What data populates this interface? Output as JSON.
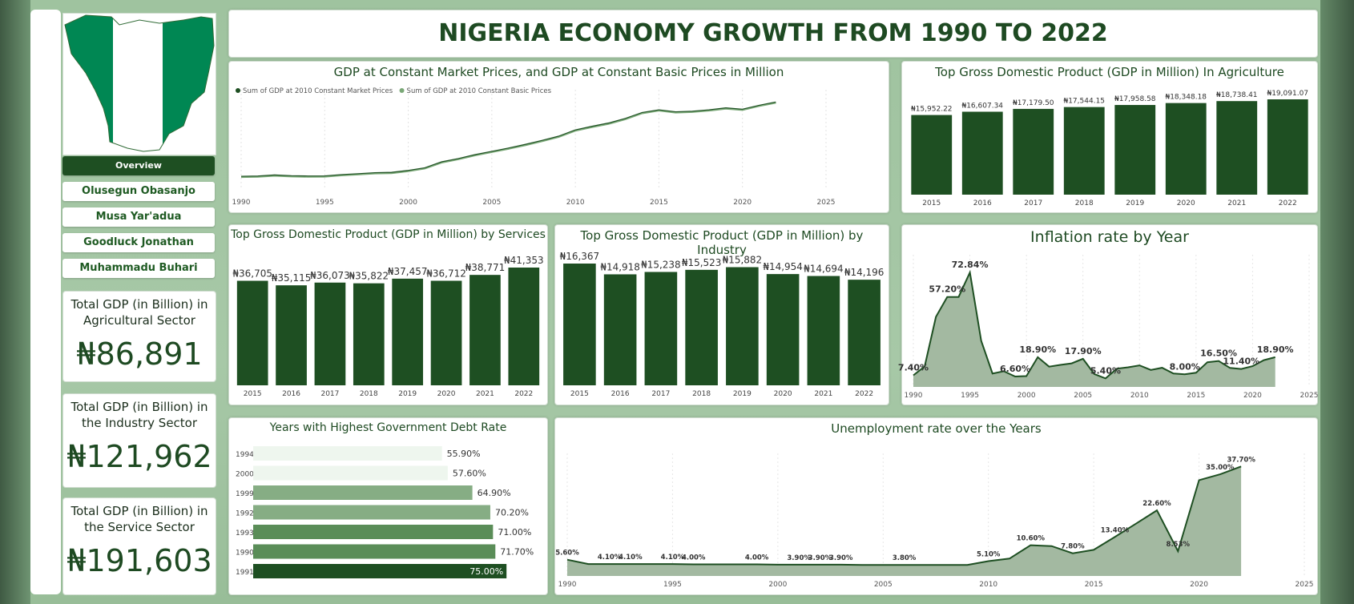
{
  "header": {
    "title": "NIGERIA ECONOMY GROWTH FROM 1990 TO 2022"
  },
  "colors": {
    "dark_green": "#1e4f22",
    "flag_green": "#008753",
    "area": "#a3b9a1",
    "light": "#7aa877"
  },
  "nav": {
    "overview": "Overview",
    "items": [
      "Olusegun Obasanjo",
      "Musa Yar'adua",
      "Goodluck Jonathan",
      "Muhammadu Buhari"
    ]
  },
  "kpis": [
    {
      "label": "Total GDP (in Billion) in Agricultural Sector",
      "value": "₦86,891"
    },
    {
      "label": "Total GDP (in Billion) in the Industry Sector",
      "value": "₦121,962"
    },
    {
      "label": "Total GDP (in Billion) in the Service Sector",
      "value": "₦191,603"
    }
  ],
  "chart_data": [
    {
      "type": "line",
      "title": "GDP at Constant Market Prices, and GDP at Constant Basic Prices in Million",
      "x": [
        1990,
        1991,
        1992,
        1993,
        1994,
        1995,
        1996,
        1997,
        1998,
        1999,
        2000,
        2001,
        2002,
        2003,
        2004,
        2005,
        2006,
        2007,
        2008,
        2009,
        2010,
        2011,
        2012,
        2013,
        2014,
        2015,
        2016,
        2017,
        2018,
        2019,
        2020,
        2021,
        2022
      ],
      "xticks": [
        1990,
        1995,
        2000,
        2005,
        2010,
        2015,
        2020,
        2025
      ],
      "xlim": [
        1990,
        2025
      ],
      "series": [
        {
          "name": "Sum of GDP at 2010 Constant Market Prices",
          "values": [
            20,
            20.5,
            22,
            21,
            20.5,
            20.6,
            22.5,
            24,
            25.5,
            26,
            29,
            33,
            42,
            47,
            53,
            58,
            63,
            68.5,
            74.5,
            81,
            90.5,
            96,
            101,
            108,
            117,
            121,
            118,
            119,
            121,
            124,
            122,
            128,
            133
          ]
        },
        {
          "name": "Sum of GDP at 2010 Constant Basic Prices",
          "values": [
            19,
            19.5,
            21,
            20,
            19.5,
            19.6,
            21.5,
            23,
            24.5,
            25,
            28,
            32,
            41,
            46,
            52,
            57,
            62,
            67.5,
            73.5,
            80,
            89.5,
            95,
            100,
            107,
            116,
            120,
            117,
            118,
            120,
            123,
            121,
            127,
            132
          ]
        }
      ]
    },
    {
      "type": "bar",
      "title": "Top Gross Domestic Product (GDP in Million) In Agriculture",
      "categories": [
        "2015",
        "2016",
        "2017",
        "2018",
        "2019",
        "2020",
        "2021",
        "2022"
      ],
      "values": [
        15952.22,
        16607.34,
        17179.5,
        17544.15,
        17958.58,
        18348.18,
        18738.41,
        19091.07
      ],
      "labels": [
        "₦15,952.22",
        "₦16,607.34",
        "₦17,179.50",
        "₦17,544.15",
        "₦17,958.58",
        "₦18,348.18",
        "₦18,738.41",
        "₦19,091.07"
      ]
    },
    {
      "type": "bar",
      "title": "Top Gross Domestic Product (GDP in Million) by Services",
      "categories": [
        "2015",
        "2016",
        "2017",
        "2018",
        "2019",
        "2020",
        "2021",
        "2022"
      ],
      "values": [
        36705,
        35115,
        36073,
        35822,
        37457,
        36712,
        38771,
        41353
      ],
      "labels": [
        "₦36,705",
        "₦35,115",
        "₦36,073",
        "₦35,822",
        "₦37,457",
        "₦36,712",
        "₦38,771",
        "₦41,353"
      ]
    },
    {
      "type": "bar",
      "title": "Top Gross Domestic Product (GDP in Million) by Industry",
      "categories": [
        "2015",
        "2016",
        "2017",
        "2018",
        "2019",
        "2020",
        "2021",
        "2022"
      ],
      "values": [
        16367,
        14918,
        15238,
        15523,
        15882,
        14954,
        14694,
        14196
      ],
      "labels": [
        "₦16,367",
        "₦14,918",
        "₦15,238",
        "₦15,523",
        "₦15,882",
        "₦14,954",
        "₦14,694",
        "₦14,196"
      ]
    },
    {
      "type": "area",
      "title": "Inflation rate by Year",
      "x": [
        1990,
        1991,
        1992,
        1993,
        1994,
        1995,
        1996,
        1997,
        1998,
        1999,
        2000,
        2001,
        2002,
        2003,
        2004,
        2005,
        2006,
        2007,
        2008,
        2009,
        2010,
        2011,
        2012,
        2013,
        2014,
        2015,
        2016,
        2017,
        2018,
        2019,
        2020,
        2021,
        2022
      ],
      "values": [
        7.4,
        13.0,
        44.6,
        57.2,
        57.2,
        72.84,
        29.3,
        8.5,
        10.0,
        6.6,
        6.9,
        18.9,
        12.9,
        14.0,
        15.0,
        17.9,
        8.2,
        5.4,
        11.6,
        12.5,
        13.7,
        10.8,
        12.2,
        8.5,
        8.0,
        9.0,
        15.7,
        16.5,
        12.1,
        11.4,
        13.2,
        17.0,
        18.9
      ],
      "labels": {
        "1990": "7.40%",
        "1993": "57.20%",
        "1995": "72.84%",
        "1999": "6.60%",
        "2001": "18.90%",
        "2005": "17.90%",
        "2007": "5.40%",
        "2014": "8.00%",
        "2017": "16.50%",
        "2019": "11.40%",
        "2022": "18.90%"
      },
      "xticks": [
        1990,
        1995,
        2000,
        2005,
        2010,
        2015,
        2020,
        2025
      ],
      "xlim": [
        1990,
        2025
      ]
    },
    {
      "type": "bar",
      "orientation": "horizontal",
      "title": "Years with Highest Government Debt Rate",
      "categories": [
        "1994",
        "2000",
        "1999",
        "1992",
        "1993",
        "1990",
        "1991"
      ],
      "values": [
        55.9,
        57.6,
        64.9,
        70.2,
        71.0,
        71.7,
        75.0
      ],
      "labels": [
        "55.90%",
        "57.60%",
        "64.90%",
        "70.20%",
        "71.00%",
        "71.70%",
        "75.00%"
      ]
    },
    {
      "type": "area",
      "title": "Unemployment rate over the Years",
      "x": [
        1990,
        1991,
        1992,
        1993,
        1994,
        1995,
        1996,
        1997,
        1998,
        1999,
        2000,
        2001,
        2002,
        2003,
        2004,
        2005,
        2006,
        2007,
        2008,
        2009,
        2010,
        2011,
        2012,
        2013,
        2014,
        2015,
        2016,
        2017,
        2018,
        2019,
        2020,
        2021,
        2022
      ],
      "values": [
        5.6,
        4.1,
        4.1,
        4.1,
        4.1,
        4.1,
        4.0,
        4.0,
        4.0,
        4.0,
        3.9,
        3.9,
        3.9,
        3.9,
        3.8,
        3.8,
        3.8,
        3.8,
        3.8,
        3.8,
        5.1,
        6.0,
        10.6,
        10.3,
        7.8,
        9.0,
        13.4,
        18.0,
        22.6,
        8.53,
        33.0,
        35.0,
        37.7
      ],
      "labels": {
        "1990": "5.60%",
        "1992": "4.10%",
        "1993": "4.10%",
        "1995": "4.10%",
        "1996": "4.00%",
        "1999": "4.00%",
        "2001": "3.90%",
        "2002": "3.90%",
        "2003": "3.90%",
        "2006": "3.80%",
        "2010": "5.10%",
        "2012": "10.60%",
        "2014": "7.80%",
        "2016": "13.40%",
        "2018": "22.60%",
        "2019": "8.53%",
        "2021": "35.00%",
        "2022": "37.70%"
      },
      "xticks": [
        1990,
        1995,
        2000,
        2005,
        2010,
        2015,
        2020,
        2025
      ],
      "xlim": [
        1990,
        2025
      ]
    }
  ]
}
